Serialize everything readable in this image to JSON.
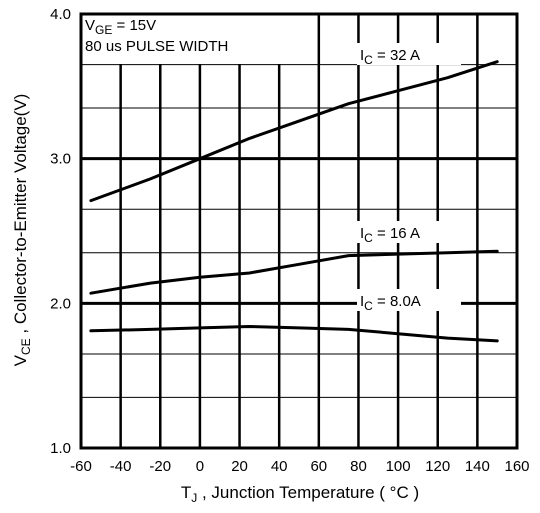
{
  "chart_data": {
    "type": "line",
    "xlabel_main": "T",
    "xlabel_sub": "J",
    "xlabel_rest": " , Junction Temperature ( °C )",
    "ylabel_main": "V",
    "ylabel_sub": "CE",
    "ylabel_rest": " , Collector-to-Emitter Voltage(V)",
    "xlim": [
      -60,
      160
    ],
    "ylim": [
      1.0,
      4.0
    ],
    "xticks": [
      -60,
      -40,
      -20,
      0,
      20,
      40,
      60,
      80,
      100,
      120,
      140,
      160
    ],
    "xtick_labels": [
      "-60",
      "-40",
      "-20",
      "0",
      "20",
      "40",
      "60",
      "80",
      "100",
      "120",
      "140",
      "160"
    ],
    "yticks": [
      1.0,
      2.0,
      3.0,
      4.0
    ],
    "ytick_labels": [
      "1.0",
      "2.0",
      "3.0",
      "4.0"
    ],
    "grid": true,
    "conditions": {
      "vge_main": "V",
      "vge_sub": "GE",
      "vge_rest": " = 15V",
      "pulse": "80 us PULSE WIDTH"
    },
    "series": [
      {
        "label_main": "I",
        "label_sub": "C",
        "label_rest": "= 32 A",
        "x": [
          -55,
          -25,
          0,
          25,
          50,
          75,
          100,
          125,
          150
        ],
        "y": [
          2.71,
          2.86,
          3.0,
          3.14,
          3.26,
          3.38,
          3.47,
          3.56,
          3.67
        ]
      },
      {
        "label_main": "I",
        "label_sub": "C",
        "label_rest": "= 16 A",
        "x": [
          -55,
          -25,
          0,
          25,
          50,
          75,
          100,
          125,
          150
        ],
        "y": [
          2.07,
          2.14,
          2.18,
          2.21,
          2.27,
          2.33,
          2.34,
          2.35,
          2.36
        ]
      },
      {
        "label_main": "I",
        "label_sub": "C",
        "label_rest": "= 8.0A",
        "x": [
          -55,
          -25,
          0,
          25,
          50,
          75,
          100,
          125,
          150
        ],
        "y": [
          1.81,
          1.82,
          1.83,
          1.84,
          1.83,
          1.82,
          1.79,
          1.76,
          1.74
        ]
      }
    ]
  }
}
